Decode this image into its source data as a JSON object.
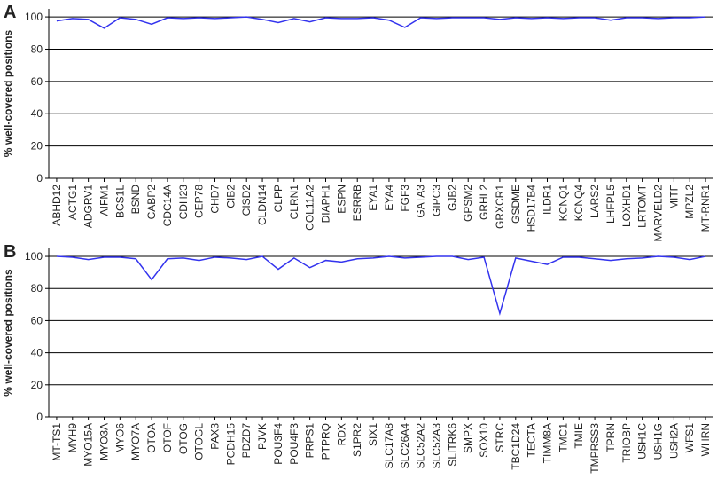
{
  "chart_data": [
    {
      "type": "line",
      "panel": "A",
      "y_label": "% well-covered positions",
      "categories": [
        "ABHD12",
        "ACTG1",
        "ADGRV1",
        "AIFM1",
        "BCS1L",
        "BSND",
        "CABP2",
        "CDC14A",
        "CDH23",
        "CEP78",
        "CHD7",
        "CIB2",
        "CISD2",
        "CLDN14",
        "CLPP",
        "CLRN1",
        "COL11A2",
        "DIAPH1",
        "ESPN",
        "ESRRB",
        "EYA1",
        "EYA4",
        "FGF3",
        "GATA3",
        "GIPC3",
        "GJB2",
        "GPSM2",
        "GRHL2",
        "GRXCR1",
        "GSDME",
        "HSD17B4",
        "ILDR1",
        "KCNQ1",
        "KCNQ4",
        "LARS2",
        "LHFPL5",
        "LOXHD1",
        "LRTOMT",
        "MARVELD2",
        "MITF",
        "MPZL2",
        "MT-RNR1"
      ],
      "values": [
        97.5,
        99,
        98.5,
        93,
        99.5,
        98.5,
        95.5,
        99.5,
        99,
        99.5,
        99,
        99.5,
        100,
        98.5,
        96.5,
        99,
        97,
        99.5,
        99,
        99,
        99.5,
        98,
        93.5,
        99.5,
        99,
        99.5,
        99.5,
        99.5,
        98.5,
        99.5,
        99,
        99.5,
        99,
        99.5,
        99.5,
        98,
        99.5,
        99.5,
        99,
        99.5,
        99.5,
        100
      ],
      "color": "#3333ee",
      "ylim": [
        0,
        105
      ],
      "yticks": [
        0,
        20,
        40,
        60,
        80,
        100
      ],
      "grid": true
    },
    {
      "type": "line",
      "panel": "B",
      "y_label": "% well-covered positions",
      "categories": [
        "MT-TS1",
        "MYH9",
        "MYO15A",
        "MYO3A",
        "MYO6",
        "MYO7A",
        "OTOA",
        "OTOF",
        "OTOG",
        "OTOGL",
        "PAX3",
        "PCDH15",
        "PDZD7",
        "PJVK",
        "POU3F4",
        "POU4F3",
        "PRPS1",
        "PTPRQ",
        "RDX",
        "S1PR2",
        "SIX1",
        "SLC17A8",
        "SLC26A4",
        "SLC52A2",
        "SLC52A3",
        "SLITRK6",
        "SMPX",
        "SOX10",
        "STRC",
        "TBC1D24",
        "TECTA",
        "TIMM8A",
        "TMC1",
        "TMIE",
        "TMPRSS3",
        "TPRN",
        "TRIOBP",
        "USH1C",
        "USH1G",
        "USH2A",
        "WFS1",
        "WHRN"
      ],
      "values": [
        100,
        99.5,
        98,
        99.5,
        99.5,
        98.5,
        85.5,
        98.5,
        99,
        97.5,
        99.5,
        99,
        98,
        100,
        92,
        99,
        93,
        97.5,
        96.5,
        98.5,
        99,
        100,
        99,
        99.5,
        100,
        100,
        98,
        99.5,
        64.5,
        99,
        97,
        95,
        99.5,
        99.5,
        98.5,
        97.5,
        98.5,
        99,
        100,
        99.5,
        98,
        100
      ],
      "color": "#3333ee",
      "ylim": [
        0,
        105
      ],
      "yticks": [
        0,
        20,
        40,
        60,
        80,
        100
      ],
      "grid": true
    }
  ]
}
